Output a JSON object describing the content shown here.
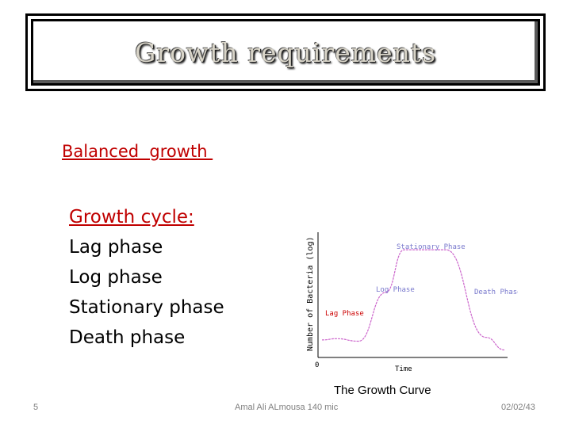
{
  "slide": {
    "title": "Growth requirements",
    "balanced_heading": "Balanced  growth ",
    "cycle_heading": "Growth cycle:",
    "phases": [
      "Lag phase",
      "Log phase",
      "Stationary phase",
      "Death phase"
    ],
    "caption": "The Growth Curve",
    "footer": {
      "slide_number": "5",
      "author": "Amal Ali ALmousa 140 mic",
      "date": "02/02/43"
    }
  },
  "chart_data": {
    "type": "line",
    "ylabel": "Number of Bacteria (log)",
    "xlabel": "Time",
    "origin_label": "0",
    "annotations": [
      "Lag Phase",
      "Log Phase",
      "Stationary Phase",
      "Death Phase"
    ],
    "series": [
      {
        "values": [
          [
            0,
            1.4
          ],
          [
            0.08,
            1.5
          ],
          [
            0.2,
            1.3
          ],
          [
            0.35,
            5.2
          ],
          [
            0.45,
            8.6
          ],
          [
            0.68,
            8.6
          ],
          [
            0.9,
            1.6
          ],
          [
            1.0,
            0.6
          ]
        ]
      }
    ],
    "xlim": [
      0,
      1.0
    ],
    "ylim": [
      0,
      10
    ],
    "colors": {
      "curve": "#cc66cc",
      "annotation": "#7777cc",
      "lag_label": "#cc0000"
    }
  }
}
